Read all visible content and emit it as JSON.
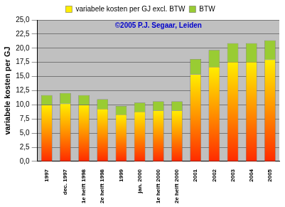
{
  "chart_data": {
    "type": "bar",
    "stacked": true,
    "y_label": "variabele kosten per GJ",
    "annotations": [
      "©2005 P.J. Segaar, Leiden"
    ],
    "categories": [
      "1997",
      "dec. 1997",
      "1e helft 1998",
      "2e helft 1998",
      "1999",
      "jan. 2000",
      "1e helft 2000",
      "2e helft 2000",
      "2001",
      "2002",
      "2003",
      "2004",
      "2005"
    ],
    "series": [
      {
        "name": "variabele kosten per GJ excl. BTW",
        "color": "#ffee00",
        "values": [
          10.0,
          10.2,
          10.0,
          9.3,
          8.3,
          8.8,
          9.0,
          9.0,
          15.4,
          16.7,
          17.6,
          17.6,
          18.0
        ]
      },
      {
        "name": "BTW",
        "color": "#99cc33",
        "values": [
          1.7,
          1.9,
          1.7,
          1.7,
          1.5,
          1.6,
          1.6,
          1.6,
          2.7,
          3.0,
          3.3,
          3.3,
          3.4
        ]
      }
    ],
    "ylim": [
      0,
      25
    ],
    "yticks": [
      {
        "value": 0,
        "label": "0,0"
      },
      {
        "value": 2.5,
        "label": "2,5"
      },
      {
        "value": 5,
        "label": "5,0"
      },
      {
        "value": 7.5,
        "label": "7,5"
      },
      {
        "value": 10,
        "label": "10,0"
      },
      {
        "value": 12.5,
        "label": "12,5"
      },
      {
        "value": 15,
        "label": "15,0"
      },
      {
        "value": 17.5,
        "label": "17,5"
      },
      {
        "value": 20,
        "label": "20,0"
      },
      {
        "value": 22.5,
        "label": "22,5"
      },
      {
        "value": 25,
        "label": "25,0"
      }
    ],
    "grid": true,
    "legend": "top",
    "data_labels": false
  }
}
